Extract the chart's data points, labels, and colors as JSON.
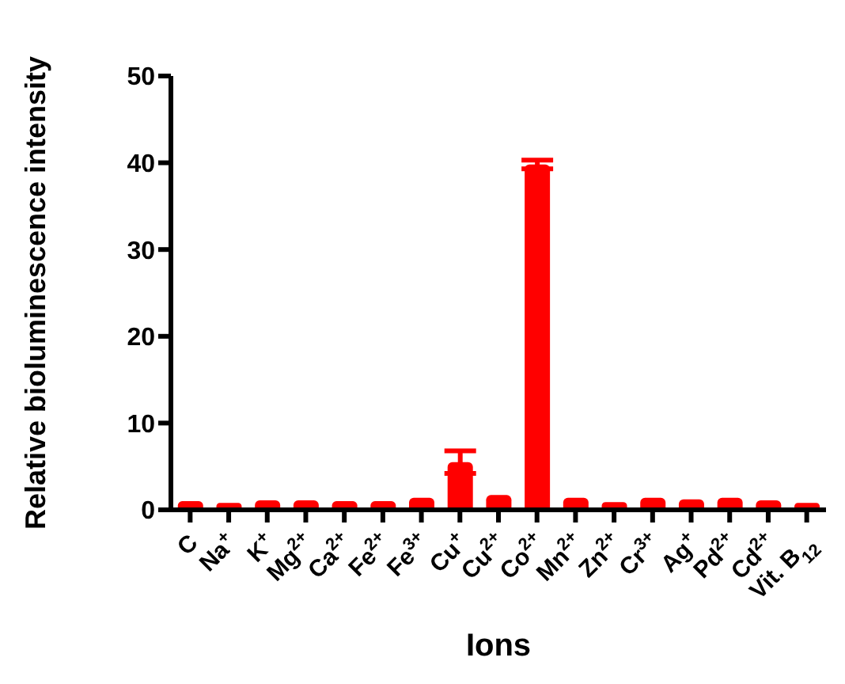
{
  "chart_data": {
    "type": "bar",
    "xlabel": "Ions",
    "ylabel": "Relative bioluminescence intensity",
    "categories": [
      "C",
      "Na$^{+}$",
      "K$^{+}$",
      "Mg$^{2+}$",
      "Ca$^{2+}$",
      "Fe$^{2+}$",
      "Fe$^{3+}$",
      "Cu$^{+}$",
      "Cu$^{2+}$",
      "Co$^{2+}$",
      "Mn$^{2+}$",
      "Zn$^{2+}$",
      "Cr$^{3+}$",
      "Ag$^{+}$",
      "Pd$^{2+}$",
      "Cd$^{2+}$",
      "Vit. B$_{12}$"
    ],
    "values": [
      1.0,
      0.8,
      1.1,
      1.1,
      1.0,
      1.0,
      1.4,
      5.5,
      1.7,
      39.8,
      1.4,
      0.9,
      1.4,
      1.2,
      1.4,
      1.1,
      0.8
    ],
    "errors": [
      null,
      null,
      null,
      null,
      null,
      null,
      null,
      1.3,
      null,
      0.5,
      null,
      null,
      null,
      null,
      null,
      null,
      null
    ],
    "color": "#ff0000",
    "ylim": [
      0,
      50
    ],
    "yticks": [
      0,
      10,
      20,
      30,
      40,
      50
    ],
    "grid": false,
    "legend": false
  }
}
